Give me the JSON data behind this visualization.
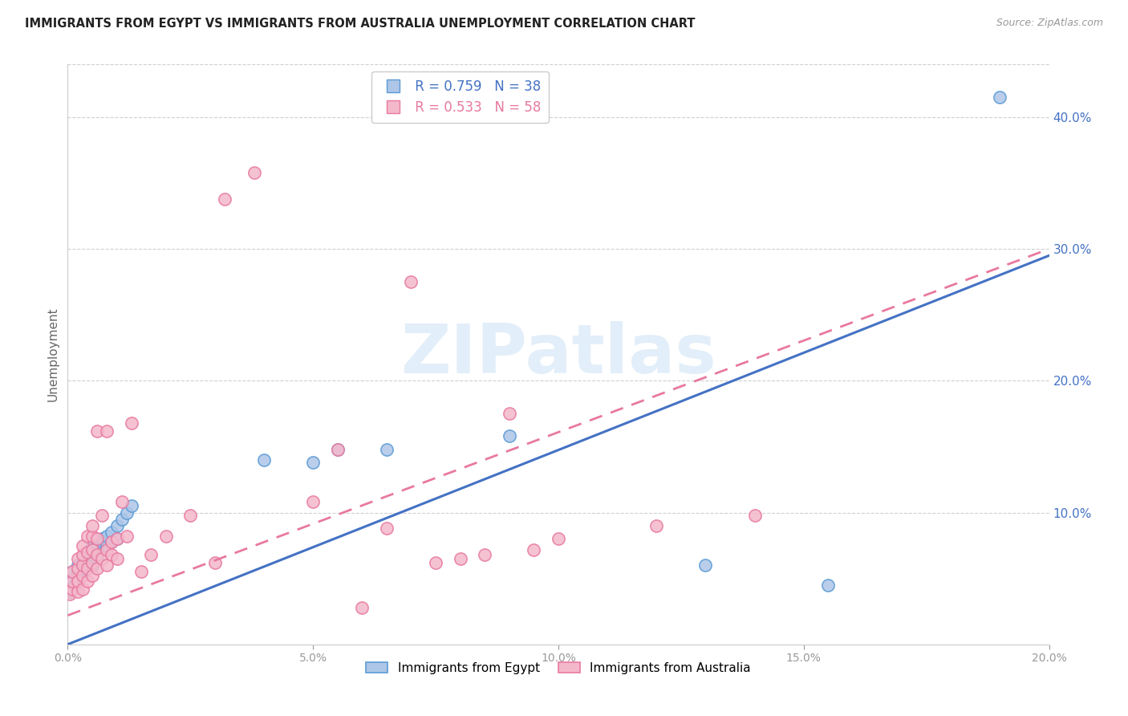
{
  "title": "IMMIGRANTS FROM EGYPT VS IMMIGRANTS FROM AUSTRALIA UNEMPLOYMENT CORRELATION CHART",
  "source": "Source: ZipAtlas.com",
  "ylabel": "Unemployment",
  "series1_label": "Immigrants from Egypt",
  "series2_label": "Immigrants from Australia",
  "R1": 0.759,
  "N1": 38,
  "R2": 0.533,
  "N2": 58,
  "color1_face": "#aec6e8",
  "color1_edge": "#5b9bd5",
  "color2_face": "#f4b8cb",
  "color2_edge": "#e87aa0",
  "line_color1": "#4472c4",
  "line_color2": "#e879a0",
  "right_tick_color": "#4472c4",
  "xlim": [
    0.0,
    0.2
  ],
  "ylim": [
    0.0,
    0.44
  ],
  "xticks": [
    0.0,
    0.05,
    0.1,
    0.15,
    0.2
  ],
  "yticks_right": [
    0.1,
    0.2,
    0.3,
    0.4
  ],
  "watermark_text": "ZIPatlas",
  "series1_x": [
    0.0005,
    0.0008,
    0.001,
    0.001,
    0.0015,
    0.002,
    0.002,
    0.002,
    0.003,
    0.003,
    0.003,
    0.004,
    0.004,
    0.004,
    0.005,
    0.005,
    0.005,
    0.006,
    0.006,
    0.007,
    0.007,
    0.008,
    0.008,
    0.009,
    0.009,
    0.01,
    0.01,
    0.011,
    0.012,
    0.013,
    0.04,
    0.05,
    0.055,
    0.065,
    0.09,
    0.13,
    0.155,
    0.19
  ],
  "series1_y": [
    0.04,
    0.05,
    0.05,
    0.055,
    0.045,
    0.048,
    0.06,
    0.055,
    0.055,
    0.058,
    0.062,
    0.06,
    0.065,
    0.07,
    0.06,
    0.068,
    0.075,
    0.065,
    0.075,
    0.078,
    0.08,
    0.075,
    0.082,
    0.078,
    0.085,
    0.08,
    0.09,
    0.095,
    0.1,
    0.105,
    0.14,
    0.138,
    0.148,
    0.148,
    0.158,
    0.06,
    0.045,
    0.415
  ],
  "series2_x": [
    0.0005,
    0.001,
    0.001,
    0.001,
    0.002,
    0.002,
    0.002,
    0.002,
    0.003,
    0.003,
    0.003,
    0.003,
    0.003,
    0.004,
    0.004,
    0.004,
    0.004,
    0.005,
    0.005,
    0.005,
    0.005,
    0.005,
    0.006,
    0.006,
    0.006,
    0.006,
    0.007,
    0.007,
    0.008,
    0.008,
    0.008,
    0.009,
    0.009,
    0.01,
    0.01,
    0.011,
    0.012,
    0.013,
    0.015,
    0.017,
    0.02,
    0.025,
    0.03,
    0.032,
    0.038,
    0.05,
    0.055,
    0.06,
    0.065,
    0.07,
    0.075,
    0.08,
    0.085,
    0.09,
    0.095,
    0.1,
    0.12,
    0.14
  ],
  "series2_y": [
    0.038,
    0.042,
    0.048,
    0.055,
    0.04,
    0.048,
    0.058,
    0.065,
    0.042,
    0.052,
    0.06,
    0.068,
    0.075,
    0.048,
    0.058,
    0.07,
    0.082,
    0.052,
    0.062,
    0.072,
    0.082,
    0.09,
    0.058,
    0.068,
    0.08,
    0.162,
    0.065,
    0.098,
    0.06,
    0.072,
    0.162,
    0.068,
    0.078,
    0.065,
    0.08,
    0.108,
    0.082,
    0.168,
    0.055,
    0.068,
    0.082,
    0.098,
    0.062,
    0.338,
    0.358,
    0.108,
    0.148,
    0.028,
    0.088,
    0.275,
    0.062,
    0.065,
    0.068,
    0.175,
    0.072,
    0.08,
    0.09,
    0.098
  ],
  "line1_x0": 0.0,
  "line1_y0": 0.0,
  "line1_x1": 0.2,
  "line1_y1": 0.295,
  "line2_x0": 0.0,
  "line2_y0": 0.022,
  "line2_x1": 0.2,
  "line2_y1": 0.3
}
